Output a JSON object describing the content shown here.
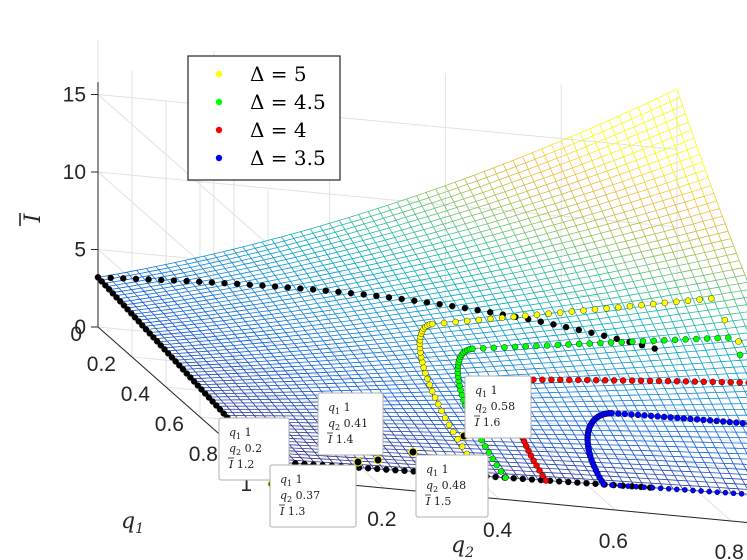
{
  "chart_data": {
    "type": "surface",
    "xlabel": "q_2",
    "ylabel": "q_1",
    "zlabel": "Ī",
    "axis_labels": {
      "x": "q",
      "x_sub": "2",
      "y": "q",
      "y_sub": "1",
      "z": "I"
    },
    "xlim": [
      0,
      1
    ],
    "ylim": [
      0,
      1
    ],
    "zlim": [
      0,
      15
    ],
    "x_ticks": [
      "0.2",
      "0.4",
      "0.6",
      "0.8",
      "1"
    ],
    "y_ticks": [
      "0",
      "0.2",
      "0.4",
      "0.6",
      "0.8",
      "1"
    ],
    "z_ticks": [
      "0",
      "5",
      "10",
      "15"
    ],
    "grid": true,
    "colormap": "parula",
    "surface_values": {
      "at_q1_1_q2_0": 1.0,
      "at_q1_1_q2_1": 2.0,
      "at_q1_0_q2_0": 3.2,
      "at_q1_0_q2_1": 15.4
    },
    "series": [
      {
        "name": "Δ = 5",
        "color": "#ffff00"
      },
      {
        "name": "Δ = 4.5",
        "color": "#00ff00"
      },
      {
        "name": "Δ = 4",
        "color": "#ff0000"
      },
      {
        "name": "Δ = 3.5",
        "color": "#0000ff"
      }
    ],
    "legend": {
      "position": "top-left"
    },
    "datatips": [
      {
        "q1": "1",
        "q2": "0.2",
        "I": "1.2"
      },
      {
        "q1": "1",
        "q2": "0.37",
        "I": "1.3"
      },
      {
        "q1": "1",
        "q2": "0.41",
        "I": "1.4"
      },
      {
        "q1": "1",
        "q2": "0.48",
        "I": "1.5"
      },
      {
        "q1": "1",
        "q2": "0.58",
        "I": "1.6"
      }
    ],
    "datatip_labels": {
      "q1": "q",
      "q1_sub": "1",
      "q2": "q",
      "q2_sub": "2",
      "I": "I"
    }
  }
}
